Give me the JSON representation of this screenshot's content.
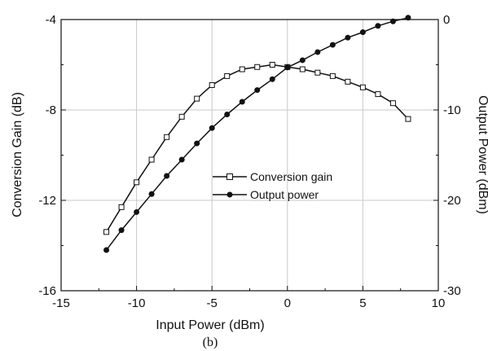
{
  "chart_data": {
    "type": "line",
    "caption": "(b)",
    "xlabel": "Input Power (dBm)",
    "ylabel_left": "Conversion Gain (dB)",
    "ylabel_right": "Output Power (dBm)",
    "xlim": [
      -15,
      10
    ],
    "ylim_left": [
      -16,
      -4
    ],
    "ylim_right": [
      -30,
      0
    ],
    "x_ticks": [
      "-15",
      "-10",
      "-5",
      "0",
      "5",
      "10"
    ],
    "y_left_ticks": [
      "-16",
      "-12",
      "-8",
      "-4"
    ],
    "y_right_ticks": [
      "-30",
      "-20",
      "-10",
      "0"
    ],
    "grid": true,
    "legend_position": "center",
    "series": [
      {
        "name": "Conversion gain",
        "axis": "left",
        "marker": "open-square",
        "color": "#111111",
        "x": [
          -12,
          -11,
          -10,
          -9,
          -8,
          -7,
          -6,
          -5,
          -4,
          -3,
          -2,
          -1,
          0,
          1,
          2,
          3,
          4,
          5,
          6,
          7,
          8
        ],
        "y": [
          -13.4,
          -12.3,
          -11.2,
          -10.2,
          -9.2,
          -8.3,
          -7.5,
          -6.9,
          -6.5,
          -6.2,
          -6.1,
          -6.0,
          -6.1,
          -6.2,
          -6.35,
          -6.5,
          -6.75,
          -7.0,
          -7.3,
          -7.7,
          -8.4
        ]
      },
      {
        "name": "Output power",
        "axis": "right",
        "marker": "filled-circle",
        "color": "#111111",
        "x": [
          -12,
          -11,
          -10,
          -9,
          -8,
          -7,
          -6,
          -5,
          -4,
          -3,
          -2,
          -1,
          0,
          1,
          2,
          3,
          4,
          5,
          6,
          7,
          8
        ],
        "y": [
          -25.5,
          -23.3,
          -21.3,
          -19.3,
          -17.3,
          -15.5,
          -13.7,
          -12.0,
          -10.5,
          -9.1,
          -7.8,
          -6.6,
          -5.3,
          -4.5,
          -3.6,
          -2.8,
          -2.0,
          -1.4,
          -0.7,
          -0.2,
          0.2
        ]
      }
    ]
  }
}
